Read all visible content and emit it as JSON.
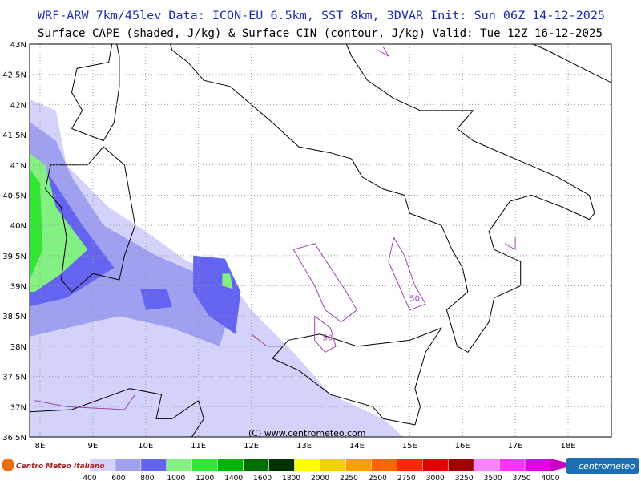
{
  "header": {
    "line1": "WRF-ARW 7km/45lev   Data: ICON-EU 6.5km, SST 8km, 3DVAR   Init: Sun 06Z 14-12-2025",
    "line2": "Surface CAPE (shaded, J/kg) & Surface CIN (contour, J/kg)  Valid: Tue 12Z 16-12-2025"
  },
  "map": {
    "lat_labels": [
      "43N",
      "42.5N",
      "42N",
      "41.5N",
      "41N",
      "40.5N",
      "40N",
      "39.5N",
      "39N",
      "38.5N",
      "38N",
      "37.5N",
      "37N",
      "36.5N"
    ],
    "lon_labels": [
      "8E",
      "9E",
      "10E",
      "11E",
      "12E",
      "13E",
      "14E",
      "15E",
      "16E",
      "17E",
      "18E"
    ],
    "contour_labels": [
      "50",
      "50"
    ],
    "watermark": "(C) www.centrometeo.com"
  },
  "colorbar": {
    "labels": [
      "400",
      "600",
      "800",
      "1000",
      "1200",
      "1400",
      "1600",
      "1800",
      "2000",
      "2250",
      "2500",
      "2750",
      "3000",
      "3250",
      "3500",
      "3750",
      "4000"
    ],
    "colors": [
      "#d2d2fa",
      "#a0a0f0",
      "#6464f0",
      "#82f082",
      "#32e632",
      "#00b400",
      "#006e00",
      "#003200",
      "#ffff00",
      "#f0d200",
      "#ffa000",
      "#ff6400",
      "#ff2800",
      "#e60000",
      "#a00000",
      "#ff82ff",
      "#ff32ff",
      "#e600e6",
      "#c800c8"
    ]
  },
  "logos": {
    "left": "Centro Meteo Italiano",
    "right": "centrometeo"
  }
}
